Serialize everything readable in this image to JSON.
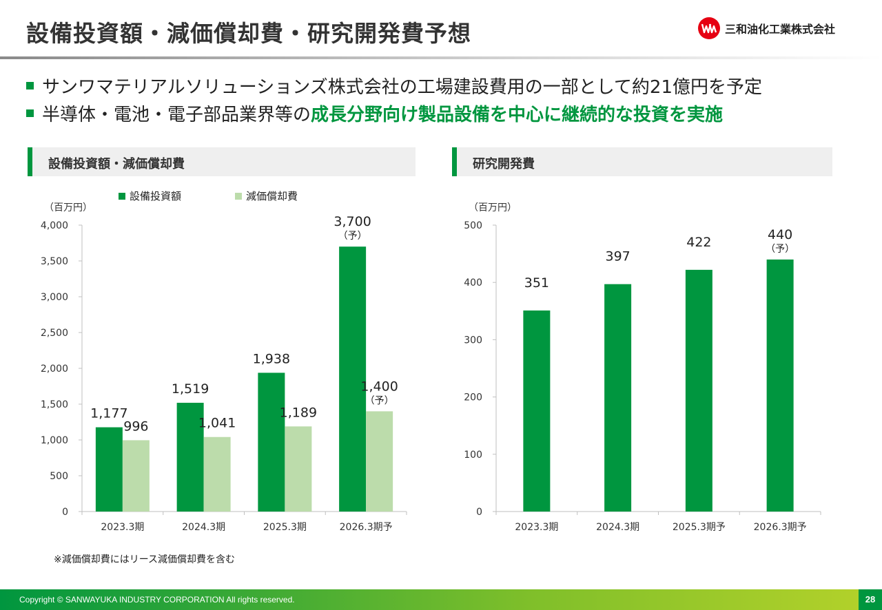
{
  "header": {
    "title": "設備投資額・減価償却費・研究開発費予想",
    "company": "三和油化工業株式会社"
  },
  "bullets": [
    {
      "text": "サンワマテリアルソリューションズ株式会社の工場建設費用の一部として約21億円を予定",
      "highlight": ""
    },
    {
      "text": "半導体・電池・電子部品業界等の",
      "highlight": "成長分野向け製品設備を中心に継続的な投資を実施"
    }
  ],
  "sections": {
    "left": "設備投資額・減価償却費",
    "right": "研究開発費"
  },
  "note": "※減価償却費にはリース減価償却費を含む",
  "footer": {
    "copyright": "Copyright © SANWAYUKA INDUSTRY CORPORATION All rights reserved.",
    "page": "28"
  },
  "colors": {
    "accent": "#00963f",
    "light_green": "#bcdcab"
  },
  "chart_data": [
    {
      "type": "bar",
      "unit": "（百万円）",
      "categories": [
        "2023.3期",
        "2024.3期",
        "2025.3期",
        "2026.3期予"
      ],
      "series": [
        {
          "name": "設備投資額",
          "values": [
            1177,
            1519,
            1938,
            3700
          ],
          "labels": [
            "1,177",
            "1,519",
            "1,938",
            "3,700"
          ],
          "color": "#00963f"
        },
        {
          "name": "減価償却費",
          "values": [
            996,
            1041,
            1189,
            1400
          ],
          "labels": [
            "996",
            "1,041",
            "1,189",
            "1,400"
          ],
          "color": "#bcdcab"
        }
      ],
      "yticks": [
        "0",
        "500",
        "1,000",
        "1,500",
        "2,000",
        "2,500",
        "3,000",
        "3,500",
        "4,000"
      ],
      "ylim": [
        0,
        4000
      ],
      "legend": "top",
      "forecast_mark": "（予）"
    },
    {
      "type": "bar",
      "unit": "（百万円）",
      "categories": [
        "2023.3期",
        "2024.3期",
        "2025.3期予",
        "2026.3期予"
      ],
      "series": [
        {
          "values": [
            351,
            397,
            422,
            440
          ],
          "labels": [
            "351",
            "397",
            "422",
            "440"
          ],
          "color": "#00963f"
        }
      ],
      "yticks": [
        "0",
        "100",
        "200",
        "300",
        "400",
        "500"
      ],
      "ylim": [
        0,
        500
      ],
      "forecast_mark": "（予）"
    }
  ]
}
